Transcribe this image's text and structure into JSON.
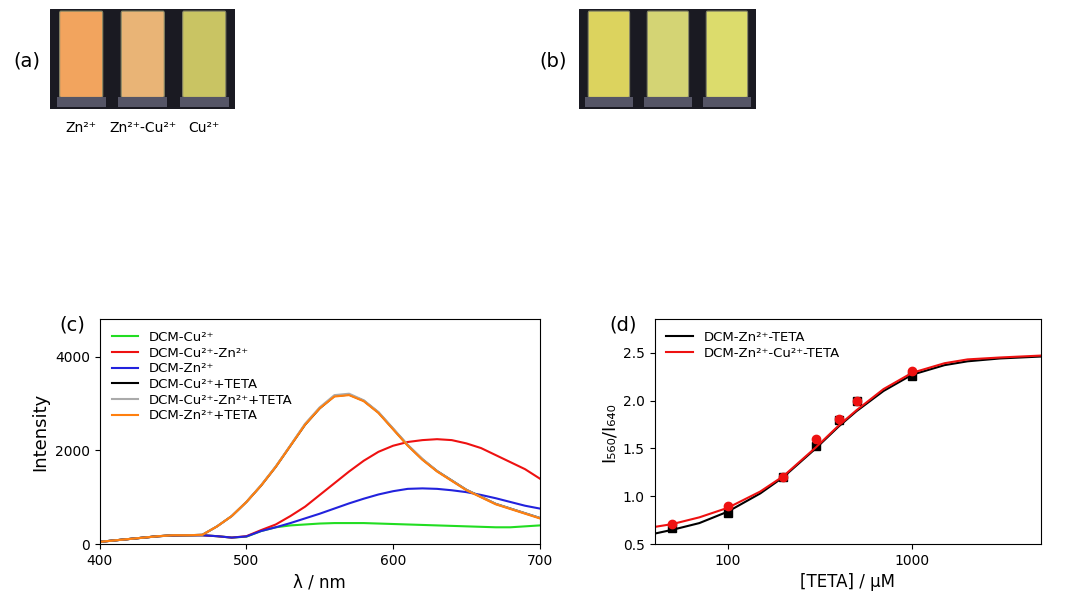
{
  "photos": [
    {
      "panel_label": "(a)",
      "background": "#1a1a22",
      "colors": [
        "#f2a45e",
        "#e9b476",
        "#c9c463"
      ],
      "captions": [
        "Zn²⁺",
        "Zn²⁺-Cu²⁺",
        "Cu²⁺"
      ]
    },
    {
      "panel_label": "(b)",
      "background": "#1a1a22",
      "colors": [
        "#dcd35e",
        "#d4d474",
        "#dcdc6c"
      ]
    }
  ],
  "chart_data": [
    {
      "type": "line",
      "panel_label": "(c)",
      "x_label": "λ / nm",
      "y_label": "Intensity",
      "xlim": [
        400,
        700
      ],
      "xticks": [
        400,
        500,
        600,
        700
      ],
      "ylim": [
        0,
        4800
      ],
      "yticks": [
        0,
        2000,
        4000
      ],
      "legend": "upper left",
      "x": [
        400,
        410,
        420,
        430,
        440,
        450,
        460,
        470,
        480,
        490,
        500,
        510,
        520,
        530,
        540,
        550,
        560,
        570,
        580,
        590,
        600,
        610,
        620,
        630,
        640,
        650,
        660,
        670,
        680,
        690,
        700
      ],
      "series": [
        {
          "name": "DCM-Cu²⁺",
          "color": "#22dd22",
          "values": [
            50,
            80,
            110,
            140,
            170,
            185,
            190,
            190,
            170,
            140,
            160,
            280,
            360,
            400,
            420,
            440,
            450,
            450,
            450,
            440,
            430,
            420,
            410,
            400,
            390,
            380,
            370,
            360,
            360,
            380,
            400
          ]
        },
        {
          "name": "DCM-Cu²⁺-Zn²⁺",
          "color": "#ee1111",
          "values": [
            50,
            80,
            110,
            140,
            170,
            185,
            190,
            190,
            170,
            140,
            170,
            300,
            420,
            600,
            800,
            1050,
            1300,
            1550,
            1780,
            1970,
            2100,
            2180,
            2220,
            2240,
            2220,
            2150,
            2050,
            1900,
            1750,
            1600,
            1400
          ]
        },
        {
          "name": "DCM-Zn²⁺",
          "color": "#2222dd",
          "values": [
            50,
            80,
            110,
            140,
            170,
            185,
            190,
            190,
            170,
            140,
            165,
            280,
            360,
            450,
            550,
            650,
            760,
            870,
            970,
            1060,
            1130,
            1180,
            1190,
            1180,
            1150,
            1110,
            1050,
            980,
            900,
            820,
            760
          ]
        },
        {
          "name": "DCM-Cu²⁺+TETA",
          "color": "#000000",
          "values": [
            50,
            80,
            110,
            140,
            170,
            190,
            190,
            200,
            380,
            600,
            900,
            1250,
            1650,
            2100,
            2550,
            2900,
            3160,
            3190,
            3060,
            2810,
            2460,
            2110,
            1810,
            1560,
            1360,
            1160,
            1010,
            860,
            760,
            660,
            560
          ]
        },
        {
          "name": "DCM-Cu²⁺-Zn²⁺+TETA",
          "color": "#aaaaaa",
          "values": [
            50,
            80,
            110,
            140,
            170,
            190,
            190,
            200,
            380,
            600,
            900,
            1260,
            1660,
            2110,
            2570,
            2920,
            3180,
            3210,
            3070,
            2820,
            2470,
            2120,
            1820,
            1560,
            1360,
            1160,
            1010,
            860,
            760,
            660,
            560
          ]
        },
        {
          "name": "DCM-Zn²⁺+TETA",
          "color": "#ff7f0e",
          "values": [
            50,
            80,
            110,
            140,
            170,
            190,
            190,
            200,
            380,
            600,
            900,
            1250,
            1650,
            2100,
            2550,
            2900,
            3150,
            3180,
            3050,
            2800,
            2450,
            2100,
            1800,
            1550,
            1350,
            1150,
            1000,
            850,
            750,
            650,
            550
          ]
        }
      ]
    },
    {
      "type": "scatter",
      "panel_label": "(d)",
      "x_label": "[TETA] / μM",
      "y_label": "I₅₆₀/I₆₄₀",
      "log": "x",
      "xlim": [
        40,
        5000
      ],
      "xticks": [
        100,
        1000
      ],
      "ylim": [
        0.5,
        2.85
      ],
      "yticks": [
        0.5,
        {
          "value": 1.0,
          "label": "1.0"
        },
        1.5,
        {
          "value": 2.0,
          "label": "2.0"
        },
        2.5
      ],
      "legend": "upper left",
      "series": [
        {
          "name": "DCM-Zn²⁺-TETA",
          "color": "#000000",
          "marker": "square",
          "x": [
            50,
            100,
            200,
            300,
            400,
            500,
            1000
          ],
          "values": [
            0.67,
            0.83,
            1.2,
            1.53,
            1.8,
            2.0,
            2.26
          ],
          "fit": {
            "x": [
              40,
              50,
              70,
              100,
              150,
              200,
              300,
              400,
              500,
              700,
              1000,
              1500,
              2000,
              3000,
              5000
            ],
            "values": [
              0.61,
              0.65,
              0.72,
              0.84,
              1.03,
              1.2,
              1.5,
              1.73,
              1.89,
              2.1,
              2.27,
              2.37,
              2.41,
              2.44,
              2.46
            ]
          }
        },
        {
          "name": "DCM-Zn²⁺-Cu²⁺-TETA",
          "color": "#ee1111",
          "marker": "circle",
          "x": [
            50,
            100,
            200,
            300,
            400,
            500,
            1000
          ],
          "values": [
            0.71,
            0.9,
            1.2,
            1.6,
            1.81,
            2.0,
            2.31
          ],
          "fit": {
            "x": [
              40,
              50,
              70,
              100,
              150,
              200,
              300,
              400,
              500,
              700,
              1000,
              1500,
              2000,
              3000,
              5000
            ],
            "values": [
              0.68,
              0.71,
              0.78,
              0.88,
              1.05,
              1.21,
              1.51,
              1.74,
              1.9,
              2.12,
              2.29,
              2.39,
              2.43,
              2.45,
              2.47
            ]
          }
        }
      ]
    }
  ]
}
